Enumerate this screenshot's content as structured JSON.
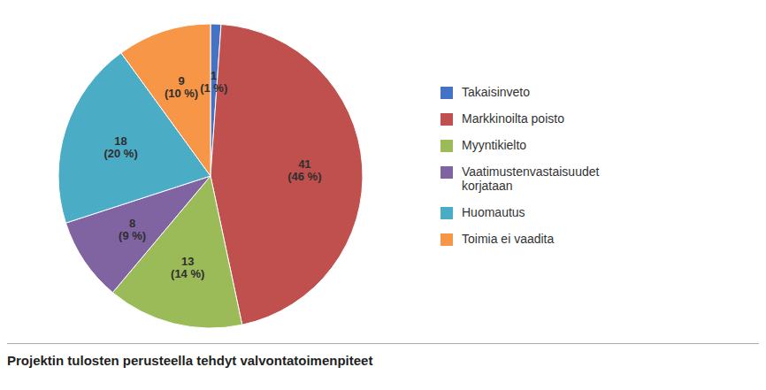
{
  "chart_data": {
    "type": "pie",
    "title": "Projektin tulosten perusteella tehdyt valvontatoimenpiteet",
    "categories": [
      "Takaisinveto",
      "Markkinoilta poisto",
      "Myyntikielto",
      "Vaatimustenvastaisuudet\nkorjataan",
      "Huomautus",
      "Toimia ei vaadita"
    ],
    "values": [
      1,
      41,
      13,
      8,
      18,
      9
    ],
    "value_labels": [
      "1\n(1 %)",
      "41\n(46 %)",
      "13\n(14 %)",
      "8\n(9 %)",
      "18\n(20 %)",
      "9\n(10 %)"
    ],
    "colors": [
      "#4472C4",
      "#C0504D",
      "#9BBB59",
      "#8064A2",
      "#4BACC6",
      "#F79646"
    ],
    "data_labels": true
  }
}
